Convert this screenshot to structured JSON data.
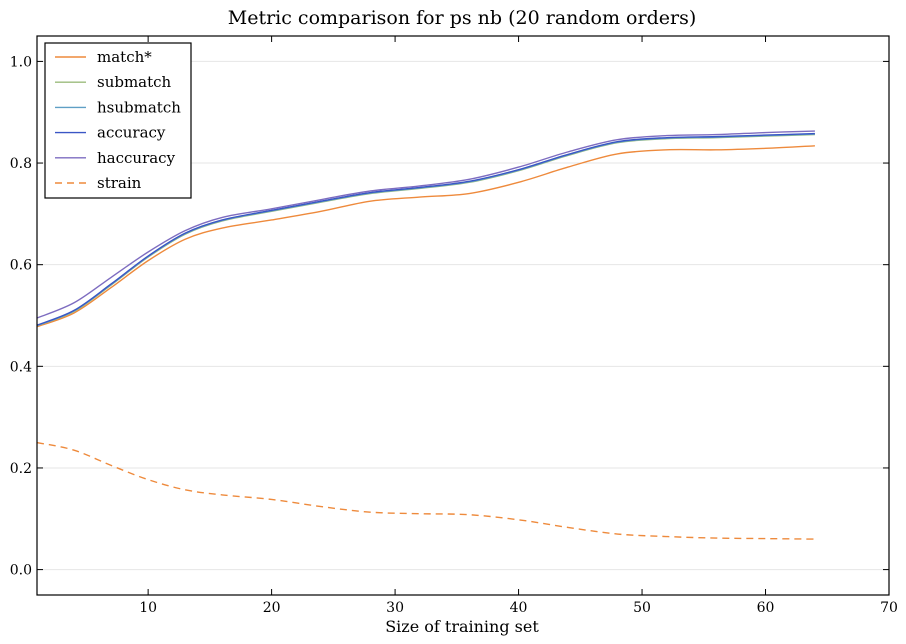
{
  "chart_data": {
    "type": "line",
    "title": "Metric comparison for ps nb (20 random orders)",
    "xlabel": "Size of training set",
    "ylabel": "",
    "xlim": [
      1,
      70
    ],
    "ylim": [
      -0.05,
      1.05
    ],
    "xticks": [
      "10",
      "20",
      "30",
      "40",
      "50",
      "60",
      "70"
    ],
    "xtick_values": [
      10,
      20,
      30,
      40,
      50,
      60,
      70
    ],
    "yticks": [
      "0.0",
      "0.2",
      "0.4",
      "0.6",
      "0.8",
      "1.0"
    ],
    "ytick_values": [
      0.0,
      0.2,
      0.4,
      0.6,
      0.8,
      1.0
    ],
    "grid": "horizontal",
    "legend_position": "top-left",
    "x": [
      1,
      4,
      7,
      10,
      13,
      16,
      20,
      24,
      28,
      32,
      36,
      40,
      44,
      48,
      52,
      56,
      60,
      64
    ],
    "series": [
      {
        "name": "match*",
        "color": "#ee8a3c",
        "dash": "solid",
        "values": [
          0.478,
          0.505,
          0.555,
          0.608,
          0.65,
          0.672,
          0.688,
          0.705,
          0.725,
          0.733,
          0.74,
          0.762,
          0.792,
          0.818,
          0.826,
          0.826,
          0.829,
          0.834
        ]
      },
      {
        "name": "submatch",
        "color": "#9bbb7c",
        "dash": "solid",
        "values": [
          0.48,
          0.508,
          0.56,
          0.615,
          0.66,
          0.686,
          0.705,
          0.723,
          0.74,
          0.75,
          0.762,
          0.785,
          0.815,
          0.84,
          0.848,
          0.85,
          0.853,
          0.856
        ]
      },
      {
        "name": "hsubmatch",
        "color": "#5f9fc5",
        "dash": "solid",
        "values": [
          0.48,
          0.509,
          0.561,
          0.616,
          0.661,
          0.687,
          0.706,
          0.724,
          0.741,
          0.751,
          0.763,
          0.786,
          0.816,
          0.841,
          0.849,
          0.851,
          0.854,
          0.857
        ]
      },
      {
        "name": "accuracy",
        "color": "#3a56c5",
        "dash": "solid",
        "values": [
          0.481,
          0.51,
          0.562,
          0.617,
          0.662,
          0.688,
          0.707,
          0.725,
          0.742,
          0.752,
          0.764,
          0.787,
          0.817,
          0.842,
          0.85,
          0.852,
          0.855,
          0.858
        ]
      },
      {
        "name": "haccuracy",
        "color": "#7d6cc0",
        "dash": "solid",
        "values": [
          0.495,
          0.525,
          0.575,
          0.625,
          0.667,
          0.693,
          0.71,
          0.728,
          0.745,
          0.755,
          0.768,
          0.792,
          0.822,
          0.846,
          0.854,
          0.856,
          0.86,
          0.863
        ]
      },
      {
        "name": "strain",
        "color": "#ee8a3c",
        "dash": "dashed",
        "values": [
          0.25,
          0.235,
          0.205,
          0.177,
          0.157,
          0.147,
          0.138,
          0.124,
          0.113,
          0.11,
          0.108,
          0.098,
          0.083,
          0.07,
          0.065,
          0.062,
          0.061,
          0.06
        ]
      }
    ]
  }
}
